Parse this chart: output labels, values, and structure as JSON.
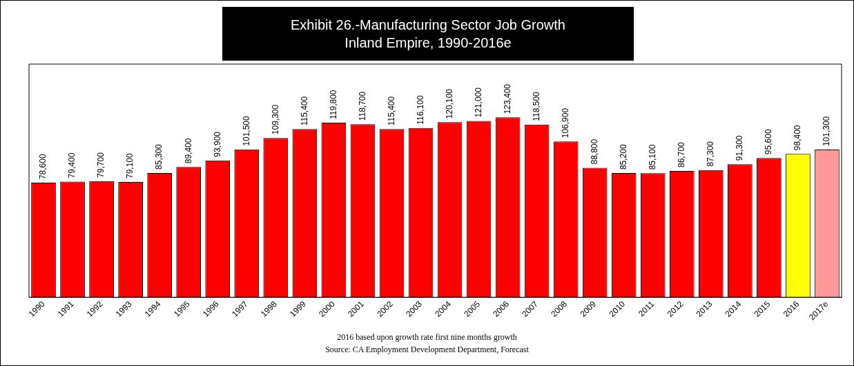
{
  "chart_data": {
    "type": "bar",
    "title": "Exhibit 26.-Manufacturing Sector Job Growth\nInland Empire, 1990-2016e",
    "categories": [
      "1990",
      "1991",
      "1992",
      "1993",
      "1994",
      "1995",
      "1996",
      "1997",
      "1998",
      "1999",
      "2000",
      "2001",
      "2002",
      "2003",
      "2004",
      "2005",
      "2006",
      "2007",
      "2008",
      "2009",
      "2010",
      "2011",
      "2012",
      "2013",
      "2014",
      "2015",
      "2016",
      "2017e"
    ],
    "values": [
      78600,
      79400,
      79700,
      79100,
      85300,
      89400,
      93900,
      101500,
      109300,
      115400,
      119800,
      118700,
      115400,
      116100,
      120100,
      121000,
      123400,
      118500,
      106900,
      88800,
      85200,
      85100,
      86700,
      87300,
      91300,
      95600,
      98400,
      101300
    ],
    "colors": [
      "#ff0000",
      "#ff0000",
      "#ff0000",
      "#ff0000",
      "#ff0000",
      "#ff0000",
      "#ff0000",
      "#ff0000",
      "#ff0000",
      "#ff0000",
      "#ff0000",
      "#ff0000",
      "#ff0000",
      "#ff0000",
      "#ff0000",
      "#ff0000",
      "#ff0000",
      "#ff0000",
      "#ff0000",
      "#ff0000",
      "#ff0000",
      "#ff0000",
      "#ff0000",
      "#ff0000",
      "#ff0000",
      "#ff0000",
      "#ffff00",
      "#ff9999"
    ],
    "value_labels": [
      "78,600",
      "79,400",
      "79,700",
      "79,100",
      "85,300",
      "89,400",
      "93,900",
      "101,500",
      "109,300",
      "115,400",
      "119,800",
      "118,700",
      "115,400",
      "116,100",
      "120,100",
      "121,000",
      "123,400",
      "118,500",
      "106,900",
      "88,800",
      "85,200",
      "85,100",
      "86,700",
      "87,300",
      "91,300",
      "95,600",
      "98,400",
      "101,300"
    ],
    "tick_labels": "x",
    "grid": false,
    "legend": false,
    "annotations": [
      "2016 based upon growth rate first nine months growth",
      "Source: CA Employment Development Department, Forecast"
    ]
  }
}
